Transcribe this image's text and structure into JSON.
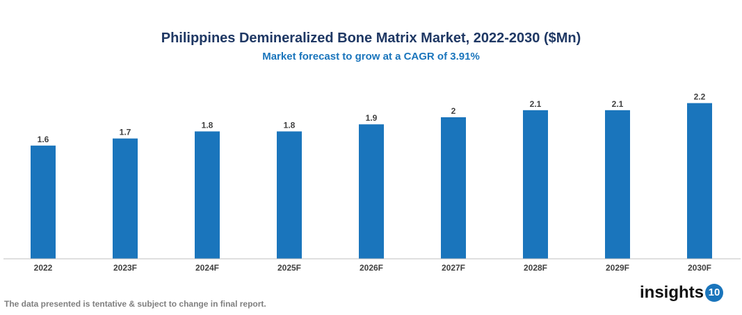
{
  "chart_data": {
    "type": "bar",
    "title": "Philippines Demineralized Bone Matrix Market, 2022-2030 ($Mn)",
    "subtitle": "Market forecast to grow at a CAGR of 3.91%",
    "categories": [
      "2022",
      "2023F",
      "2024F",
      "2025F",
      "2026F",
      "2027F",
      "2028F",
      "2029F",
      "2030F"
    ],
    "values": [
      1.6,
      1.7,
      1.8,
      1.8,
      1.9,
      2,
      2.1,
      2.1,
      2.2
    ],
    "xlabel": "",
    "ylabel": "",
    "ylim": [
      0,
      2.2
    ],
    "grid": false,
    "bar_color": "#1a75bc"
  },
  "footer": {
    "note": "The data presented is tentative & subject to change in final report.",
    "logo_text": "insights",
    "logo_number": "10"
  }
}
